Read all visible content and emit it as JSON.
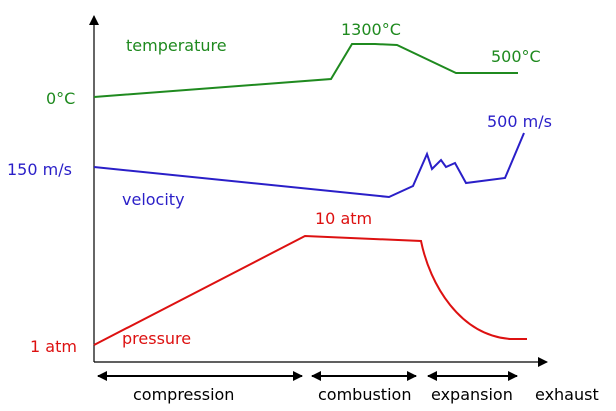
{
  "colors": {
    "temperature": "#1f8a1f",
    "velocity": "#2a1fc8",
    "pressure": "#dd1111",
    "axes": "#000000"
  },
  "temperature": {
    "label": "temperature",
    "start_label": "0°C",
    "peak_label": "1300°C",
    "end_label": "500°C"
  },
  "velocity": {
    "label": "velocity",
    "start_label": "150 m/s",
    "end_label": "500 m/s"
  },
  "pressure": {
    "label": "pressure",
    "start_label": "1 atm",
    "peak_label": "10 atm"
  },
  "phases": [
    {
      "label": "compression"
    },
    {
      "label": "combustion"
    },
    {
      "label": "expansion"
    },
    {
      "label": "exhaust"
    }
  ]
}
